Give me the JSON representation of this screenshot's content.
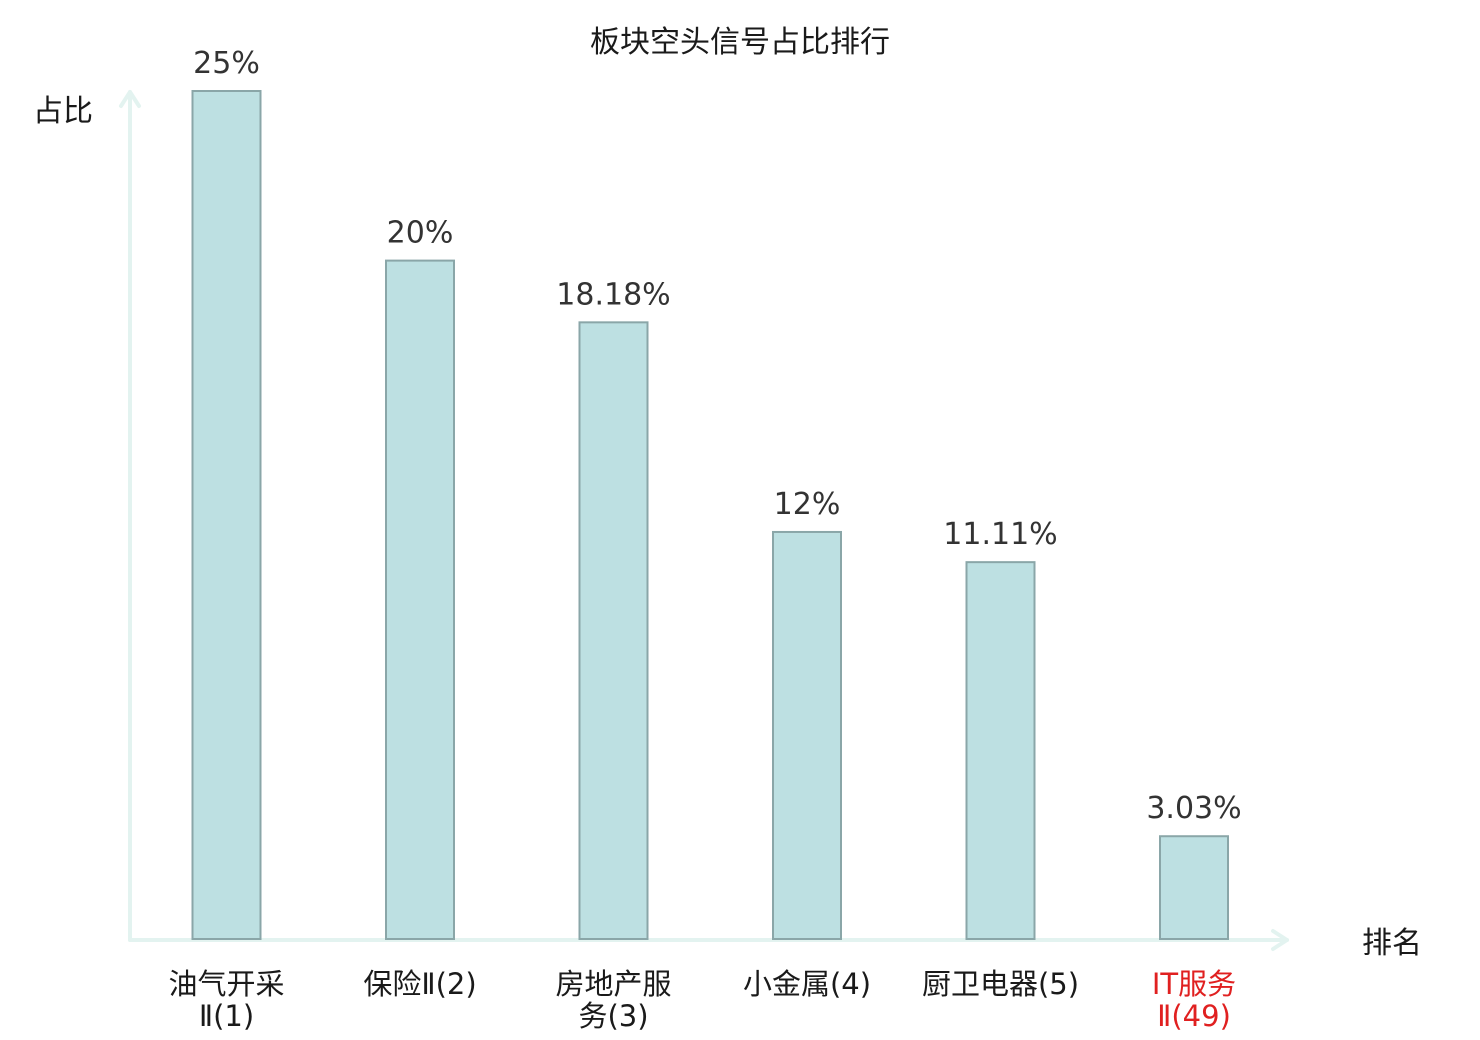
{
  "chart_data": {
    "type": "bar",
    "title": "板块空头信号占比排行",
    "xlabel": "排名",
    "ylabel": "占比",
    "ylim": [
      0,
      25
    ],
    "grid": false,
    "legend": "none",
    "categories": [
      [
        "油气开采",
        "Ⅱ(1)"
      ],
      [
        "保险Ⅱ(2)"
      ],
      [
        "房地产服",
        "务(3)"
      ],
      [
        "小金属(4)"
      ],
      [
        "厨卫电器(5)"
      ],
      [
        "IT服务",
        "Ⅱ(49)"
      ]
    ],
    "values": [
      25,
      20,
      18.18,
      12,
      11.11,
      3.03
    ],
    "value_labels": [
      "25%",
      "20%",
      "18.18%",
      "12%",
      "11.11%",
      "3.03%"
    ],
    "highlight_index": 5
  },
  "colors": {
    "bar_fill": "#bde0e2",
    "bar_stroke": "#8aa6a8",
    "axis": "#e3f3f0",
    "highlight": "#e02020",
    "text": "#1a1a1a"
  }
}
